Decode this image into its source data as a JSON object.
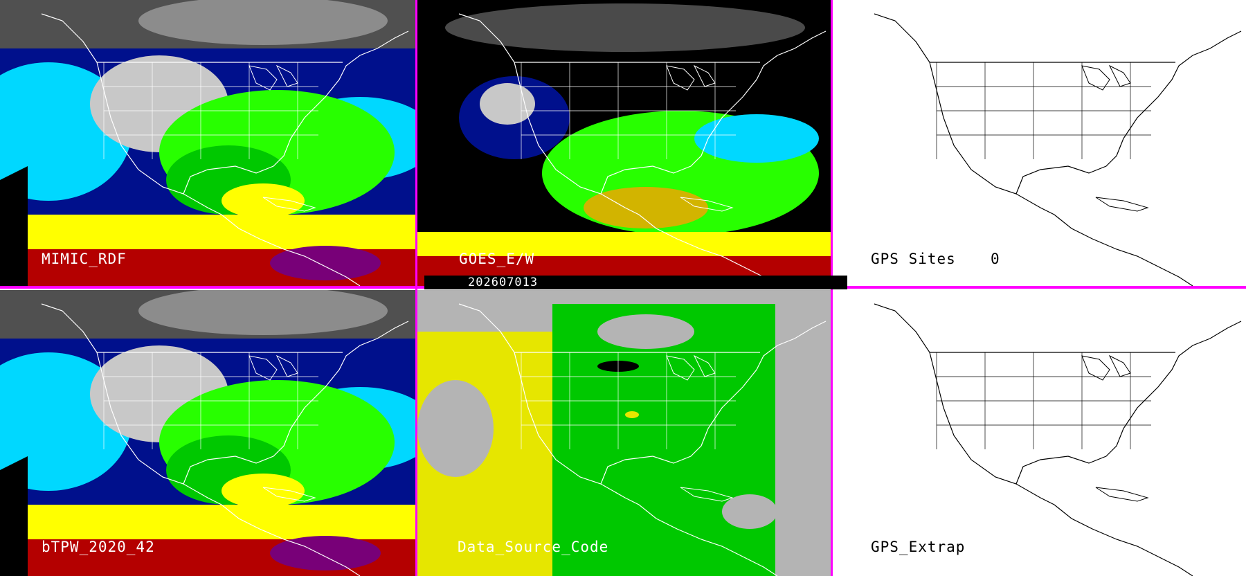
{
  "panels": [
    {
      "id": "mimic",
      "label": "MIMIC_RDF"
    },
    {
      "id": "goes",
      "label": "GOES_E/W"
    },
    {
      "id": "gps",
      "label": "GPS Sites",
      "count": "0"
    },
    {
      "id": "btpw",
      "label": "bTPW_2020_42"
    },
    {
      "id": "dsc",
      "label": "Data_Source_Code"
    },
    {
      "id": "gpsx",
      "label": "GPS_Extrap"
    }
  ],
  "timestamp": "202607013",
  "colors": {
    "divider": "#ff00ff",
    "tpw_scale": [
      "#6e6e6e",
      "#c8c8c8",
      "#00108c",
      "#0028ff",
      "#00d8ff",
      "#00f0f0",
      "#00c800",
      "#28ff00",
      "#c8ff00",
      "#ffff00",
      "#d2b400",
      "#b40000",
      "#ff0000",
      "#780078"
    ],
    "source_code": [
      "#b4b4b4",
      "#e6e600",
      "#00c800",
      "#000000"
    ]
  },
  "icons": [
    "tpw-field-map",
    "gps-site-map"
  ]
}
